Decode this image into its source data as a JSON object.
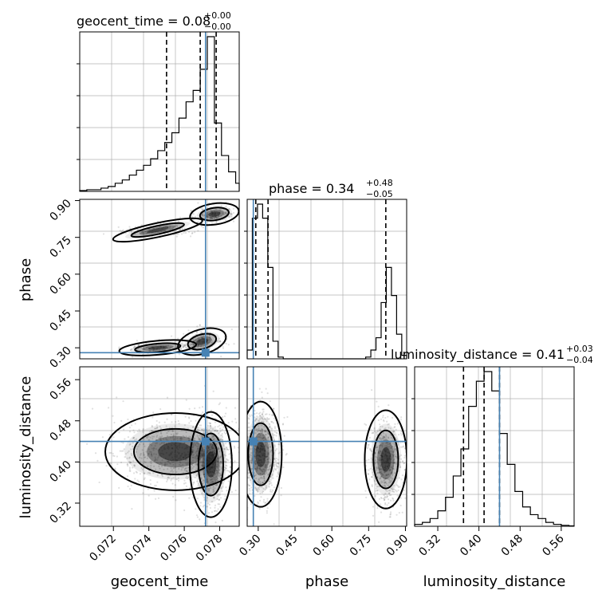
{
  "chart_data": {
    "type": "corner",
    "parameters": [
      "geocent_time",
      "phase",
      "luminosity_distance"
    ],
    "truth": {
      "geocent_time": 0.0772,
      "phase": 0.28,
      "luminosity_distance": 0.44
    },
    "quantiles": {
      "geocent_time": [
        0.075,
        0.0769,
        0.0778
      ],
      "phase": [
        0.29,
        0.34,
        0.82
      ],
      "luminosity_distance": [
        0.37,
        0.41,
        0.44
      ]
    },
    "titles": [
      {
        "param": "geocent_time",
        "text": "geocent_time = 0.08",
        "sup": "+0.00",
        "sub": "−0.00"
      },
      {
        "param": "phase",
        "text": "phase = 0.34",
        "sup": "+0.48",
        "sub": "−0.05"
      },
      {
        "param": "luminosity_distance",
        "text": "luminosity_distance = 0.41",
        "sup": "+0.03",
        "sub": "−0.04"
      }
    ],
    "axis_labels": {
      "geocent_time": "geocent_time",
      "phase": "phase",
      "luminosity_distance": "luminosity_distance"
    },
    "ranges": {
      "geocent_time": [
        0.0701,
        0.0791
      ],
      "phase": [
        0.255,
        0.905
      ],
      "luminosity_distance": [
        0.275,
        0.585
      ]
    },
    "ticks": {
      "geocent_time": [
        "0.072",
        "0.074",
        "0.076",
        "0.078"
      ],
      "phase": [
        "0.30",
        "0.45",
        "0.60",
        "0.75",
        "0.90"
      ],
      "luminosity_distance": [
        "0.32",
        "0.40",
        "0.48",
        "0.56"
      ]
    },
    "histograms": {
      "geocent_time": {
        "edges": [
          0.0701,
          0.0705,
          0.0709,
          0.0713,
          0.0717,
          0.0721,
          0.0725,
          0.0729,
          0.0733,
          0.0737,
          0.0741,
          0.0745,
          0.0749,
          0.0753,
          0.0757,
          0.0761,
          0.0765,
          0.0769,
          0.0773,
          0.0777,
          0.0781,
          0.0785,
          0.0789,
          0.0791
        ],
        "counts": [
          0.5,
          1,
          1,
          2,
          3,
          5,
          7,
          10,
          13,
          16,
          20,
          25,
          30,
          36,
          45,
          55,
          62,
          75,
          95,
          42,
          22,
          12,
          5
        ]
      },
      "phase": {
        "edges": [
          0.255,
          0.276,
          0.297,
          0.318,
          0.339,
          0.36,
          0.381,
          0.402,
          0.423,
          0.444,
          0.465,
          0.486,
          0.507,
          0.528,
          0.549,
          0.57,
          0.591,
          0.612,
          0.633,
          0.654,
          0.675,
          0.696,
          0.717,
          0.738,
          0.759,
          0.78,
          0.801,
          0.822,
          0.843,
          0.864,
          0.885,
          0.905
        ],
        "counts": [
          5,
          80,
          88,
          80,
          52,
          10,
          1,
          0,
          0,
          0,
          0,
          0,
          0,
          0,
          0,
          0,
          0,
          0,
          0,
          0,
          0,
          0,
          0,
          1,
          5,
          12,
          32,
          52,
          36,
          14,
          2
        ]
      },
      "luminosity_distance": {
        "edges": [
          0.275,
          0.29,
          0.305,
          0.32,
          0.335,
          0.35,
          0.365,
          0.38,
          0.395,
          0.41,
          0.425,
          0.44,
          0.455,
          0.47,
          0.485,
          0.5,
          0.515,
          0.53,
          0.545,
          0.56,
          0.575,
          0.585
        ],
        "counts": [
          1,
          2,
          4,
          8,
          15,
          26,
          40,
          62,
          75,
          80,
          70,
          48,
          32,
          18,
          10,
          6,
          4,
          2,
          1,
          0.5,
          0.2
        ]
      }
    },
    "densities": {
      "phase_vs_geocent_time": [
        {
          "x": 0.0762,
          "y": 0.855
        },
        {
          "x": 0.077,
          "y": 0.86
        },
        {
          "x": 0.0778,
          "y": 0.865
        },
        {
          "x": 0.0785,
          "y": 0.87
        },
        {
          "x": 0.077,
          "y": 0.33
        },
        {
          "x": 0.0776,
          "y": 0.34
        },
        {
          "x": 0.078,
          "y": 0.36
        },
        {
          "x": 0.076,
          "y": 0.32
        }
      ],
      "lum_vs_geocent_time": [
        {
          "x": 0.0765,
          "y": 0.42
        },
        {
          "x": 0.077,
          "y": 0.41
        },
        {
          "x": 0.0775,
          "y": 0.4
        },
        {
          "x": 0.0776,
          "y": 0.38
        },
        {
          "x": 0.0775,
          "y": 0.36
        },
        {
          "x": 0.0757,
          "y": 0.43
        }
      ],
      "lum_vs_phase": [
        {
          "x": 0.29,
          "y": 0.44
        },
        {
          "x": 0.31,
          "y": 0.43
        },
        {
          "x": 0.32,
          "y": 0.41
        },
        {
          "x": 0.33,
          "y": 0.39
        },
        {
          "x": 0.81,
          "y": 0.41
        },
        {
          "x": 0.82,
          "y": 0.4
        }
      ]
    },
    "grid": true
  }
}
